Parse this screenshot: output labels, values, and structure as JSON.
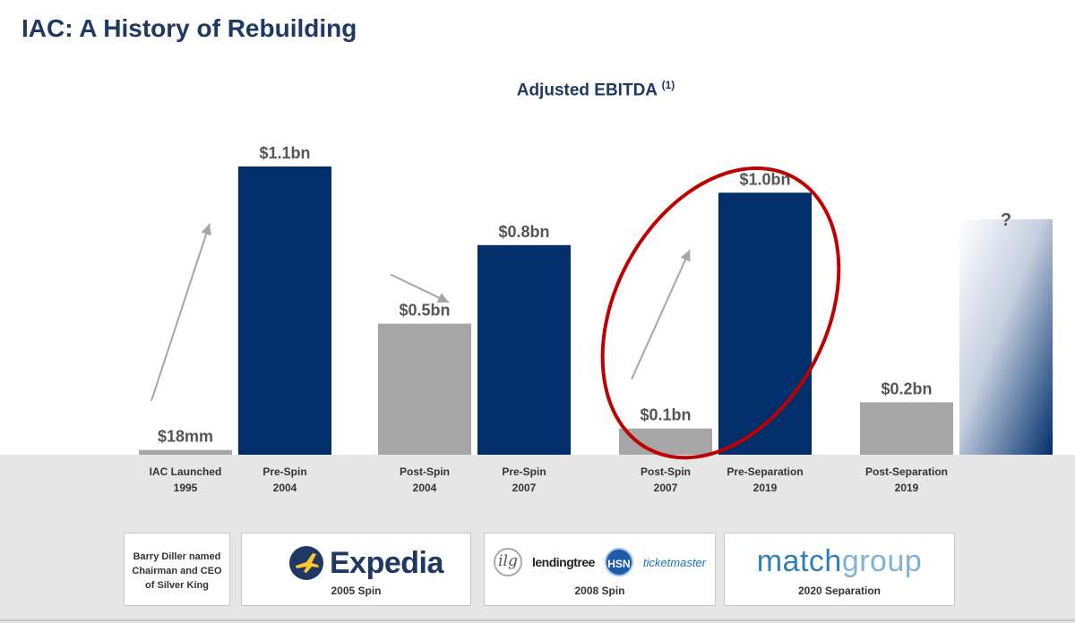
{
  "page": {
    "title": "IAC: A History of Rebuilding"
  },
  "chart_data": {
    "type": "bar",
    "title": "Adjusted EBITDA",
    "title_footnote": "(1)",
    "unit": "$bn",
    "ylim": [
      0,
      1.1
    ],
    "bars": [
      {
        "label_line1": "IAC Launched",
        "label_line2": "1995",
        "value": 0.018,
        "value_label": "$18mm",
        "color": "#a6a6a6"
      },
      {
        "label_line1": "Pre-Spin",
        "label_line2": "2004",
        "value": 1.1,
        "value_label": "$1.1bn",
        "color": "#002f6c"
      },
      {
        "label_line1": "Post-Spin",
        "label_line2": "2004",
        "value": 0.5,
        "value_label": "$0.5bn",
        "color": "#a6a6a6"
      },
      {
        "label_line1": "Pre-Spin",
        "label_line2": "2007",
        "value": 0.8,
        "value_label": "$0.8bn",
        "color": "#002f6c"
      },
      {
        "label_line1": "Post-Spin",
        "label_line2": "2007",
        "value": 0.1,
        "value_label": "$0.1bn",
        "color": "#a6a6a6"
      },
      {
        "label_line1": "Pre-Separation",
        "label_line2": "2019",
        "value": 1.0,
        "value_label": "$1.0bn",
        "color": "#002f6c"
      },
      {
        "label_line1": "Post-Separation",
        "label_line2": "2019",
        "value": 0.2,
        "value_label": "$0.2bn",
        "color": "#a6a6a6"
      }
    ],
    "future_bar": {
      "value_label": "?"
    },
    "highlight": "2019 rebuild circled",
    "colors": {
      "post": "#a6a6a6",
      "pre": "#002f6c",
      "highlight": "#c00000",
      "arrow": "#a6a6a6"
    }
  },
  "footer": {
    "cards": [
      {
        "caption": "",
        "note": "Barry Diller named Chairman and CEO of Silver King"
      },
      {
        "caption": "2005 Spin",
        "logo": "Expedia"
      },
      {
        "caption": "2008 Spin",
        "logos": [
          "ilg",
          "lendingtree",
          "HSN",
          "ticketmaster"
        ]
      },
      {
        "caption": "2020 Separation",
        "logo_a": "match",
        "logo_b": "group"
      }
    ]
  }
}
